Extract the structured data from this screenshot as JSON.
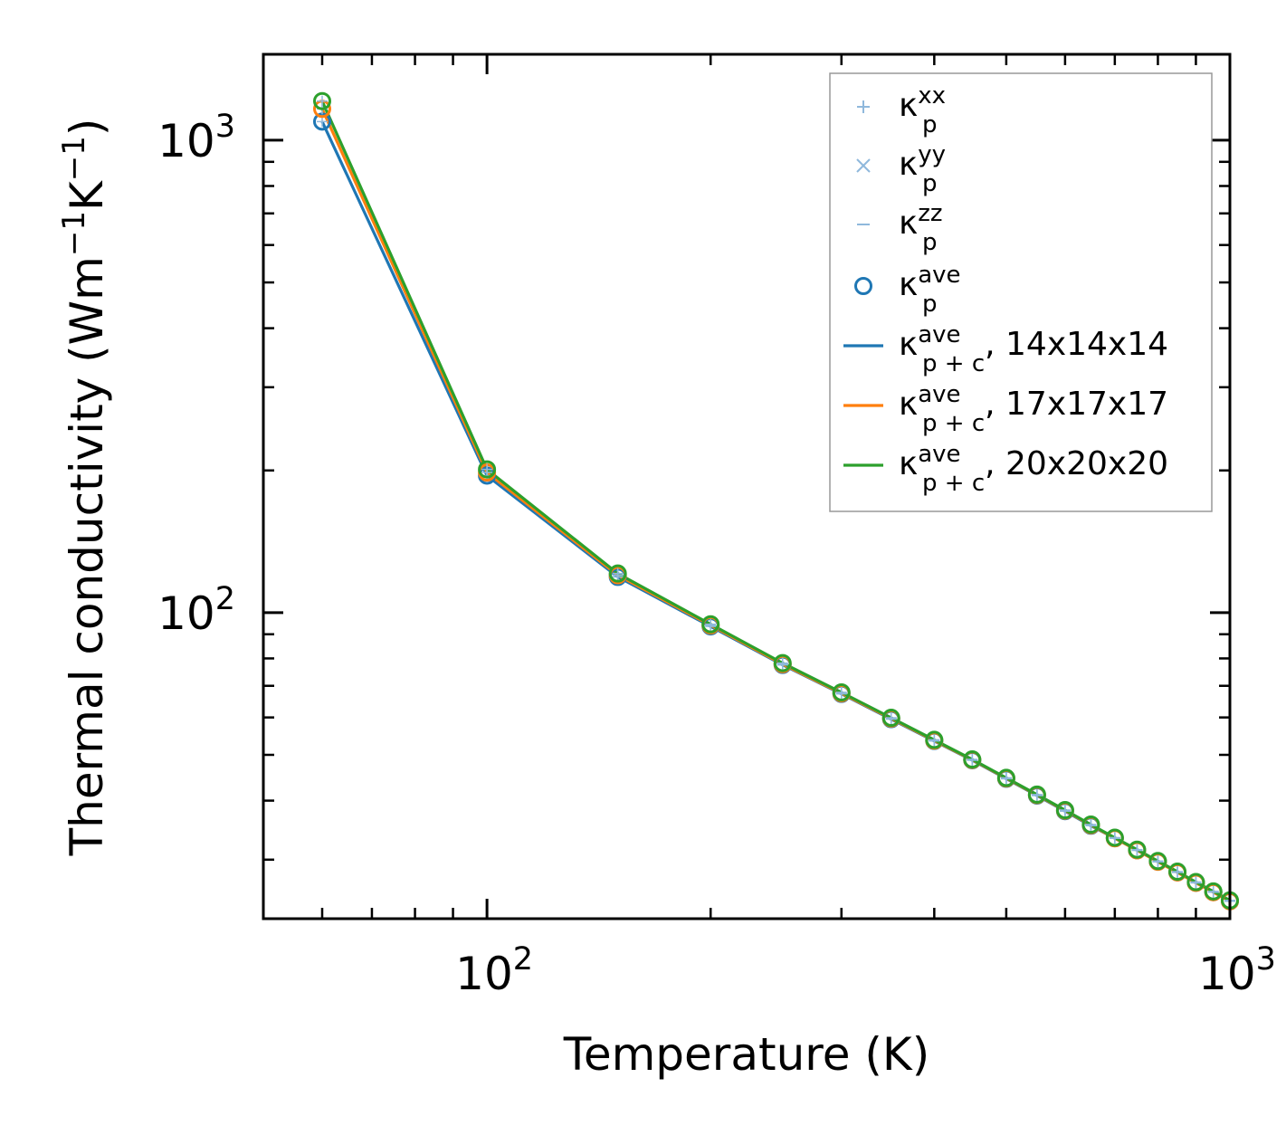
{
  "chart_data": {
    "type": "line",
    "xscale": "log",
    "yscale": "log",
    "xlim": [
      50,
      1000
    ],
    "ylim": [
      22.5,
      1520
    ],
    "xlabel": "Temperature (K)",
    "ylabel": {
      "base": "Thermal conductivity (Wm",
      "sup1": "−1",
      "mid": "K",
      "sup2": "−1",
      "end": ")"
    },
    "xticks": [
      {
        "base": "10",
        "exp": "2",
        "value": 100
      },
      {
        "base": "10",
        "exp": "3",
        "value": 1000
      }
    ],
    "yticks": [
      {
        "base": "10",
        "exp": "2",
        "value": 100
      },
      {
        "base": "10",
        "exp": "3",
        "value": 1000
      }
    ],
    "x": [
      60,
      100,
      150,
      200,
      250,
      300,
      350,
      400,
      450,
      500,
      550,
      600,
      650,
      700,
      750,
      800,
      850,
      900,
      950,
      1000
    ],
    "series": [
      {
        "name": "14x14x14",
        "color": "#1f77b4",
        "values": [
          1095,
          195,
          119,
          93.5,
          77.5,
          67.3,
          59.5,
          53.5,
          48.7,
          44.5,
          41.0,
          38.0,
          35.4,
          33.3,
          31.4,
          29.7,
          28.2,
          26.8,
          25.6,
          24.5
        ]
      },
      {
        "name": "17x17x17",
        "color": "#ff7f0e",
        "values": [
          1165,
          198,
          120,
          94.0,
          77.8,
          67.5,
          59.7,
          53.6,
          48.8,
          44.6,
          41.1,
          38.1,
          35.5,
          33.3,
          31.4,
          29.7,
          28.2,
          26.8,
          25.6,
          24.5
        ]
      },
      {
        "name": "20x20x20",
        "color": "#2ca02c",
        "values": [
          1210,
          201,
          121,
          94.5,
          78.2,
          67.8,
          59.9,
          53.8,
          48.9,
          44.7,
          41.2,
          38.2,
          35.6,
          33.4,
          31.5,
          29.8,
          28.3,
          26.9,
          25.7,
          24.6
        ]
      }
    ],
    "legend": {
      "position": "top-right",
      "entries": [
        {
          "marker": "+",
          "color": "#8fb8dc",
          "label": {
            "base": "κ",
            "sub": "p",
            "sup": "xx",
            "tail": ""
          }
        },
        {
          "marker": "×",
          "color": "#8fb8dc",
          "label": {
            "base": "κ",
            "sub": "p",
            "sup": "yy",
            "tail": ""
          }
        },
        {
          "marker": "–",
          "color": "#8fb8dc",
          "label": {
            "base": "κ",
            "sub": "p",
            "sup": "zz",
            "tail": ""
          }
        },
        {
          "marker": "circle",
          "color": "#1f77b4",
          "label": {
            "base": "κ",
            "sub": "p",
            "sup": "ave",
            "tail": ""
          }
        },
        {
          "marker": "line",
          "color": "#1f77b4",
          "label": {
            "base": "κ",
            "sub": "p + c",
            "sup": "ave",
            "tail": ", 14x14x14"
          }
        },
        {
          "marker": "line",
          "color": "#ff7f0e",
          "label": {
            "base": "κ",
            "sub": "p + c",
            "sup": "ave",
            "tail": ", 17x17x17"
          }
        },
        {
          "marker": "line",
          "color": "#2ca02c",
          "label": {
            "base": "κ",
            "sub": "p + c",
            "sup": "ave",
            "tail": ", 20x20x20"
          }
        }
      ]
    },
    "grid": false
  }
}
